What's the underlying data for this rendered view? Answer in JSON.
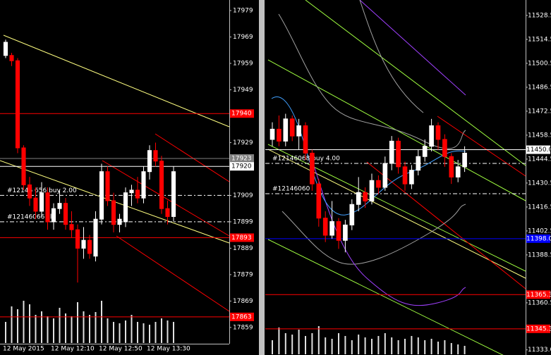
{
  "chart_data": [
    {
      "type": "candlestick",
      "ylim": [
        17852.3,
        17983
      ],
      "yticks": [
        17979,
        17969,
        17959,
        17949,
        17929,
        17909,
        17899,
        17889,
        17879,
        17869,
        17859
      ],
      "levels": [
        {
          "value": 17940,
          "color": "#ff0000"
        },
        {
          "value": 17923,
          "color": "#808080"
        },
        {
          "value": 17920,
          "color": "#ffffff"
        },
        {
          "value": 17893,
          "color": "#ff0000"
        },
        {
          "value": 17863,
          "color": "#ff0000"
        }
      ],
      "orders": [
        {
          "label": "#12146 656 buy 2.00",
          "value": 17909
        },
        {
          "label": "#12146066 sl",
          "value": 17899
        }
      ],
      "categories": [
        "12 May 2015",
        null,
        null,
        null,
        null,
        null,
        null,
        null,
        "12 May 12:10",
        null,
        null,
        null,
        null,
        null,
        null,
        null,
        "12 May 12:50",
        null,
        null,
        null,
        null,
        null,
        null,
        null,
        "12 May 13:30",
        null,
        null,
        null,
        null
      ],
      "ohlc": [
        [
          17962,
          17968,
          17961,
          17967
        ],
        [
          17962,
          17963,
          17958,
          17960
        ],
        [
          17960,
          17961,
          17925,
          17927
        ],
        [
          17927,
          17928,
          17911,
          17913
        ],
        [
          17913,
          17916,
          17905,
          17908
        ],
        [
          17908,
          17912,
          17900,
          17903
        ],
        [
          17903,
          17914,
          17901,
          17910
        ],
        [
          17910,
          17912,
          17896,
          17899
        ],
        [
          17899,
          17906,
          17896,
          17904
        ],
        [
          17904,
          17911,
          17902,
          17906
        ],
        [
          17906,
          17908,
          17896,
          17898
        ],
        [
          17898,
          17903,
          17893,
          17896
        ],
        [
          17896,
          17898,
          17876,
          17889
        ],
        [
          17889,
          17897,
          17885,
          17892
        ],
        [
          17892,
          17894,
          17885,
          17887
        ],
        [
          17886,
          17903,
          17884,
          17900
        ],
        [
          17900,
          17921,
          17898,
          17918
        ],
        [
          17918,
          17920,
          17905,
          17907
        ],
        [
          17907,
          17910,
          17895,
          17898
        ],
        [
          17898,
          17902,
          17895,
          17900
        ],
        [
          17899,
          17912,
          17897,
          17910
        ],
        [
          17910,
          17913,
          17905,
          17911
        ],
        [
          17911,
          17916,
          17906,
          17908
        ],
        [
          17908,
          17920,
          17906,
          17918
        ],
        [
          17918,
          17928,
          17915,
          17926
        ],
        [
          17926,
          17929,
          17920,
          17922
        ],
        [
          17922,
          17924,
          17902,
          17904
        ],
        [
          17904,
          17907,
          17898,
          17901
        ],
        [
          17901,
          17920,
          17899,
          17918
        ]
      ],
      "volume": [
        30,
        52,
        48,
        60,
        55,
        40,
        45,
        38,
        35,
        50,
        42,
        38,
        58,
        45,
        40,
        44,
        60,
        35,
        30,
        28,
        32,
        40,
        30,
        28,
        26,
        30,
        35,
        32,
        30
      ],
      "up_color": "#ffffff",
      "down_color": "#ff0000"
    },
    {
      "type": "candlestick",
      "ylim": [
        11330,
        11537.5
      ],
      "yticks": [
        11528.5,
        11514.5,
        11500.5,
        11486.5,
        11472.5,
        11458.5,
        11444.5,
        11430.5,
        11416.5,
        11402.5,
        11388.5,
        11360.5,
        {
          "value": 11333,
          "label": "11333.0"
        }
      ],
      "levels": [
        {
          "value": 11450,
          "label": "11450.0",
          "color": "#ffffff"
        },
        {
          "value": 11398,
          "label": "11398.0",
          "color": "#0000ff"
        },
        {
          "value": 11365.3,
          "color": "#ff0000"
        },
        {
          "value": 11345.3,
          "color": "#ff0000"
        }
      ],
      "orders": [
        {
          "label": "#12146068 buy 4.00",
          "value": 11442
        },
        {
          "label": "#12146060",
          "value": 11424.3
        }
      ],
      "ohlc": [
        [
          11456,
          11466,
          11452,
          11462
        ],
        [
          11462,
          11470,
          11452,
          11455
        ],
        [
          11455,
          11471,
          11452,
          11468
        ],
        [
          11468,
          11470,
          11455,
          11458
        ],
        [
          11458,
          11468,
          11450,
          11464
        ],
        [
          11464,
          11466,
          11444,
          11448
        ],
        [
          11448,
          11450,
          11426,
          11430
        ],
        [
          11430,
          11433,
          11405,
          11410
        ],
        [
          11410,
          11414,
          11396,
          11400
        ],
        [
          11400,
          11420,
          11398,
          11408
        ],
        [
          11408,
          11410,
          11392,
          11397
        ],
        [
          11397,
          11409,
          11390,
          11406
        ],
        [
          11406,
          11421,
          11403,
          11418
        ],
        [
          11418,
          11434,
          11414,
          11425
        ],
        [
          11425,
          11428,
          11416,
          11420
        ],
        [
          11420,
          11436,
          11418,
          11432
        ],
        [
          11432,
          11435,
          11424,
          11428
        ],
        [
          11428,
          11446,
          11426,
          11442
        ],
        [
          11442,
          11458,
          11438,
          11455
        ],
        [
          11455,
          11457,
          11436,
          11440
        ],
        [
          11440,
          11443,
          11426,
          11430
        ],
        [
          11430,
          11441,
          11427,
          11438
        ],
        [
          11438,
          11450,
          11435,
          11446
        ],
        [
          11446,
          11456,
          11443,
          11452
        ],
        [
          11452,
          11468,
          11449,
          11464
        ],
        [
          11464,
          11466,
          11450,
          11456
        ],
        [
          11456,
          11459,
          11440,
          11446
        ],
        [
          11446,
          11448,
          11430,
          11434
        ],
        [
          11434,
          11444,
          11431,
          11440
        ],
        [
          11440,
          11452,
          11437,
          11448
        ]
      ],
      "volume": [
        20,
        38,
        30,
        28,
        35,
        26,
        30,
        40,
        24,
        22,
        30,
        26,
        20,
        28,
        24,
        22,
        26,
        30,
        24,
        20,
        22,
        26,
        24,
        20,
        22,
        18,
        20,
        16,
        14,
        12
      ],
      "up_color": "#ffffff",
      "down_color": "#ff0000"
    }
  ]
}
